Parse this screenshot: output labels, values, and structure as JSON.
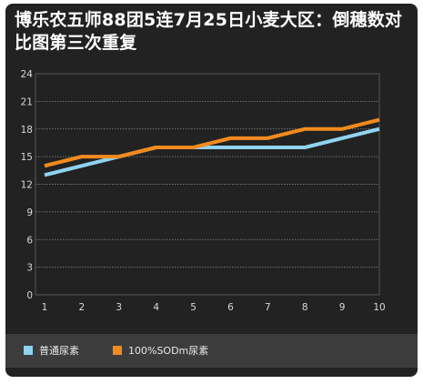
{
  "chart_data": {
    "type": "line",
    "title": "博乐农五师88团5连7月25日小麦大区：倒穗数对比图第三次重复",
    "x": [
      1,
      2,
      3,
      4,
      5,
      6,
      7,
      8,
      9,
      10
    ],
    "y_ticks": [
      0,
      3,
      6,
      9,
      12,
      15,
      18,
      21,
      24
    ],
    "ylim": [
      0,
      24
    ],
    "xlim": [
      1,
      10
    ],
    "grid": true,
    "legend_position": "bottom-left",
    "series": [
      {
        "name": "普通尿素",
        "color": "#8fd3ef",
        "values": [
          13,
          14,
          15,
          16,
          16,
          16,
          16,
          16,
          17,
          18
        ]
      },
      {
        "name": "100%SODm尿素",
        "color": "#f28a1e",
        "values": [
          14,
          15,
          15,
          16,
          16,
          17,
          17,
          18,
          18,
          19
        ]
      }
    ]
  }
}
